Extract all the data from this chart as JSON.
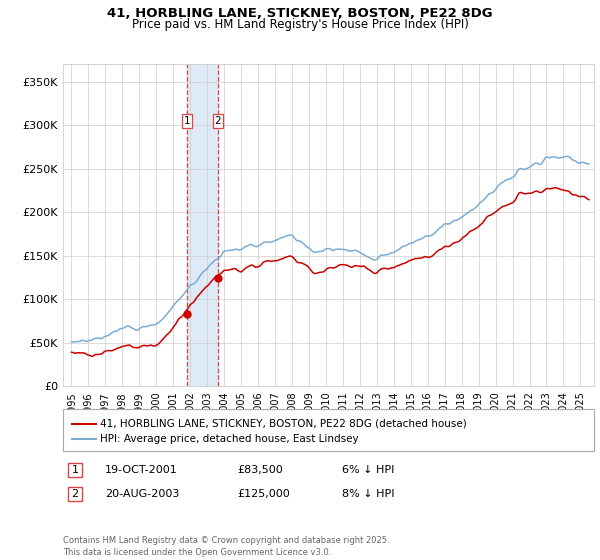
{
  "title": "41, HORBLING LANE, STICKNEY, BOSTON, PE22 8DG",
  "subtitle": "Price paid vs. HM Land Registry's House Price Index (HPI)",
  "ylabel_ticks": [
    "£0",
    "£50K",
    "£100K",
    "£150K",
    "£200K",
    "£250K",
    "£300K",
    "£350K"
  ],
  "ytick_values": [
    0,
    50000,
    100000,
    150000,
    200000,
    250000,
    300000,
    350000
  ],
  "ylim": [
    0,
    370000
  ],
  "xlim_start": 1994.5,
  "xlim_end": 2025.8,
  "purchase1_year": 2001.8,
  "purchase1_price": 83500,
  "purchase2_year": 2003.63,
  "purchase2_price": 125000,
  "red_line_color": "#cc0000",
  "blue_line_color": "#7aacd4",
  "highlight_color": "#deeaf5",
  "dashed_line_color": "#dd4444",
  "legend_label_red": "41, HORBLING LANE, STICKNEY, BOSTON, PE22 8DG (detached house)",
  "legend_label_blue": "HPI: Average price, detached house, East Lindsey",
  "table_row1": [
    "1",
    "19-OCT-2001",
    "£83,500",
    "6% ↓ HPI"
  ],
  "table_row2": [
    "2",
    "20-AUG-2003",
    "£125,000",
    "8% ↓ HPI"
  ],
  "footer": "Contains HM Land Registry data © Crown copyright and database right 2025.\nThis data is licensed under the Open Government Licence v3.0.",
  "background_color": "#ffffff",
  "xtick_years": [
    1995,
    1996,
    1997,
    1998,
    1999,
    2000,
    2001,
    2002,
    2003,
    2004,
    2005,
    2006,
    2007,
    2008,
    2009,
    2010,
    2011,
    2012,
    2013,
    2014,
    2015,
    2016,
    2017,
    2018,
    2019,
    2020,
    2021,
    2022,
    2023,
    2024,
    2025
  ]
}
